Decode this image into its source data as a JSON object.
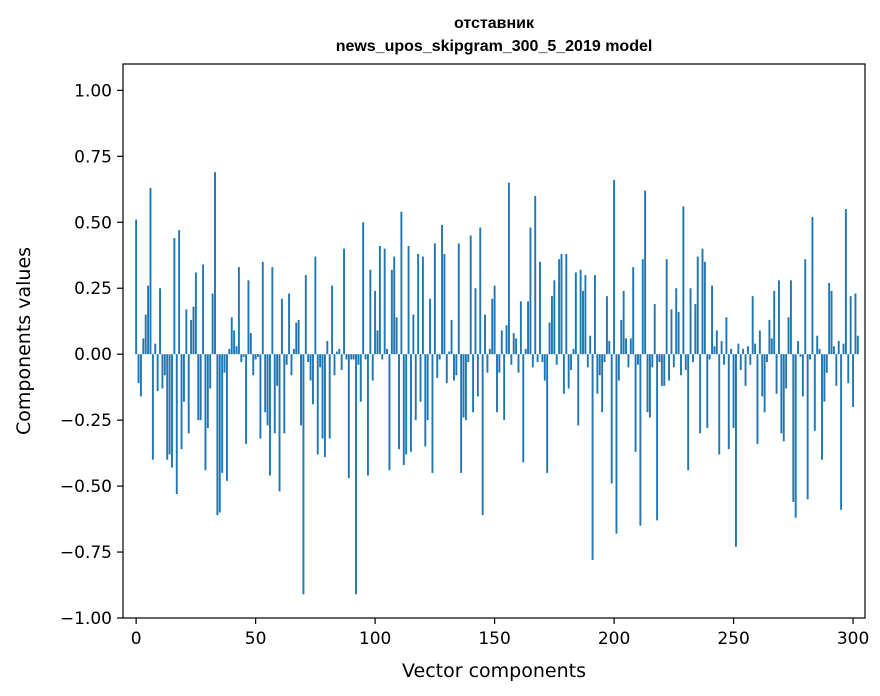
{
  "chart_data": {
    "type": "bar",
    "title": "отставник",
    "subtitle": "news_upos_skipgram_300_5_2019 model",
    "xlabel": "Vector components",
    "ylabel": "Components values",
    "xlim": [
      -5.5,
      305
    ],
    "ylim": [
      -1.0,
      1.1
    ],
    "xticks": [
      0,
      50,
      100,
      150,
      200,
      250,
      300
    ],
    "yticks": [
      -1.0,
      -0.75,
      -0.5,
      -0.25,
      0.0,
      0.25,
      0.5,
      0.75,
      1.0
    ],
    "ytick_labels": [
      "−1.00",
      "−0.75",
      "−0.50",
      "−0.25",
      "0.00",
      "0.25",
      "0.50",
      "0.75",
      "1.00"
    ],
    "bar_color": "#1f77b4",
    "grid": false,
    "legend": "none",
    "values": [
      0.51,
      -0.11,
      -0.16,
      0.06,
      0.15,
      0.26,
      0.63,
      -0.4,
      0.04,
      -0.14,
      0.25,
      -0.13,
      -0.08,
      -0.4,
      -0.38,
      -0.43,
      0.44,
      -0.53,
      0.47,
      -0.36,
      -0.18,
      0.17,
      -0.3,
      0.13,
      0.18,
      0.31,
      -0.25,
      -0.25,
      0.34,
      -0.44,
      -0.28,
      -0.13,
      0.23,
      0.69,
      -0.61,
      -0.6,
      -0.45,
      -0.07,
      -0.48,
      0.02,
      0.14,
      0.09,
      0.03,
      0.33,
      -0.03,
      -0.01,
      -0.34,
      0.28,
      0.08,
      -0.08,
      -0.02,
      -0.01,
      -0.32,
      0.35,
      -0.22,
      -0.27,
      -0.46,
      0.33,
      -0.3,
      -0.12,
      -0.52,
      0.21,
      -0.3,
      -0.04,
      0.23,
      -0.08,
      0.02,
      0.12,
      0.13,
      -0.27,
      -0.91,
      0.3,
      -0.03,
      -0.1,
      -0.19,
      0.37,
      -0.38,
      -0.05,
      -0.32,
      -0.39,
      0.05,
      -0.32,
      0.26,
      -0.08,
      0.01,
      0.02,
      -0.06,
      0.4,
      -0.02,
      -0.47,
      -0.02,
      -0.02,
      -0.91,
      -0.04,
      -0.18,
      0.5,
      -0.02,
      -0.46,
      0.32,
      -0.1,
      0.24,
      0.09,
      0.41,
      -0.02,
      0.4,
      0.02,
      -0.44,
      0.32,
      0.37,
      0.14,
      -0.36,
      0.54,
      -0.42,
      -0.38,
      0.41,
      -0.37,
      0.15,
      -0.25,
      0.38,
      -0.18,
      0.37,
      -0.35,
      -0.25,
      0.21,
      -0.45,
      0.42,
      -0.09,
      -0.02,
      0.49,
      0.38,
      -0.11,
      0.01,
      0.13,
      -0.1,
      -0.08,
      0.42,
      -0.45,
      -0.24,
      -0.25,
      -0.03,
      0.45,
      -0.22,
      0.25,
      -0.16,
      0.48,
      -0.61,
      0.15,
      -0.07,
      0.02,
      0.21,
      0.26,
      -0.22,
      -0.07,
      0.09,
      -0.25,
      0.11,
      0.65,
      -0.04,
      0.08,
      0.06,
      -0.07,
      0.2,
      -0.41,
      0.02,
      0.2,
      0.48,
      -0.05,
      0.6,
      -0.03,
      0.35,
      -0.03,
      -0.1,
      -0.45,
      0.12,
      0.22,
      0.28,
      -0.04,
      0.36,
      0.38,
      -0.15,
      0.38,
      -0.13,
      -0.06,
      0.02,
      0.31,
      -0.27,
      0.32,
      0.24,
      0.3,
      -0.05,
      0.07,
      -0.78,
      0.3,
      -0.15,
      -0.08,
      -0.22,
      -0.03,
      0.22,
      0.05,
      -0.49,
      0.66,
      -0.68,
      -0.1,
      0.13,
      0.24,
      0.06,
      -0.05,
      0.06,
      0.33,
      -0.37,
      -0.04,
      -0.65,
      0.36,
      0.62,
      -0.22,
      -0.24,
      -0.05,
      0.19,
      -0.63,
      -0.03,
      -0.12,
      -0.12,
      0.36,
      -0.1,
      0.17,
      -0.05,
      0.25,
      0.16,
      -0.08,
      0.56,
      -0.06,
      -0.44,
      0.25,
      -0.03,
      0.19,
      0.37,
      -0.3,
      0.4,
      0.35,
      -0.28,
      -0.02,
      0.26,
      0.03,
      0.09,
      -0.38,
      0.05,
      -0.04,
      0.14,
      -0.36,
      0.02,
      -0.28,
      -0.73,
      0.04,
      -0.06,
      0.02,
      -0.12,
      0.03,
      -0.04,
      0.22,
      0.04,
      -0.34,
      0.09,
      -0.16,
      -0.22,
      -0.03,
      0.13,
      0.06,
      0.24,
      -0.15,
      0.28,
      -0.3,
      -0.33,
      -0.13,
      0.14,
      0.28,
      -0.56,
      -0.62,
      0.05,
      -0.01,
      -0.16,
      0.36,
      -0.55,
      -0.02,
      0.52,
      -0.29,
      0.07,
      0.02,
      -0.4,
      -0.18,
      -0.07,
      0.27,
      0.24,
      0.03,
      -0.12,
      0.05,
      -0.59,
      0.04,
      0.55,
      -0.11,
      0.22,
      -0.2,
      0.23,
      0.07
    ]
  }
}
